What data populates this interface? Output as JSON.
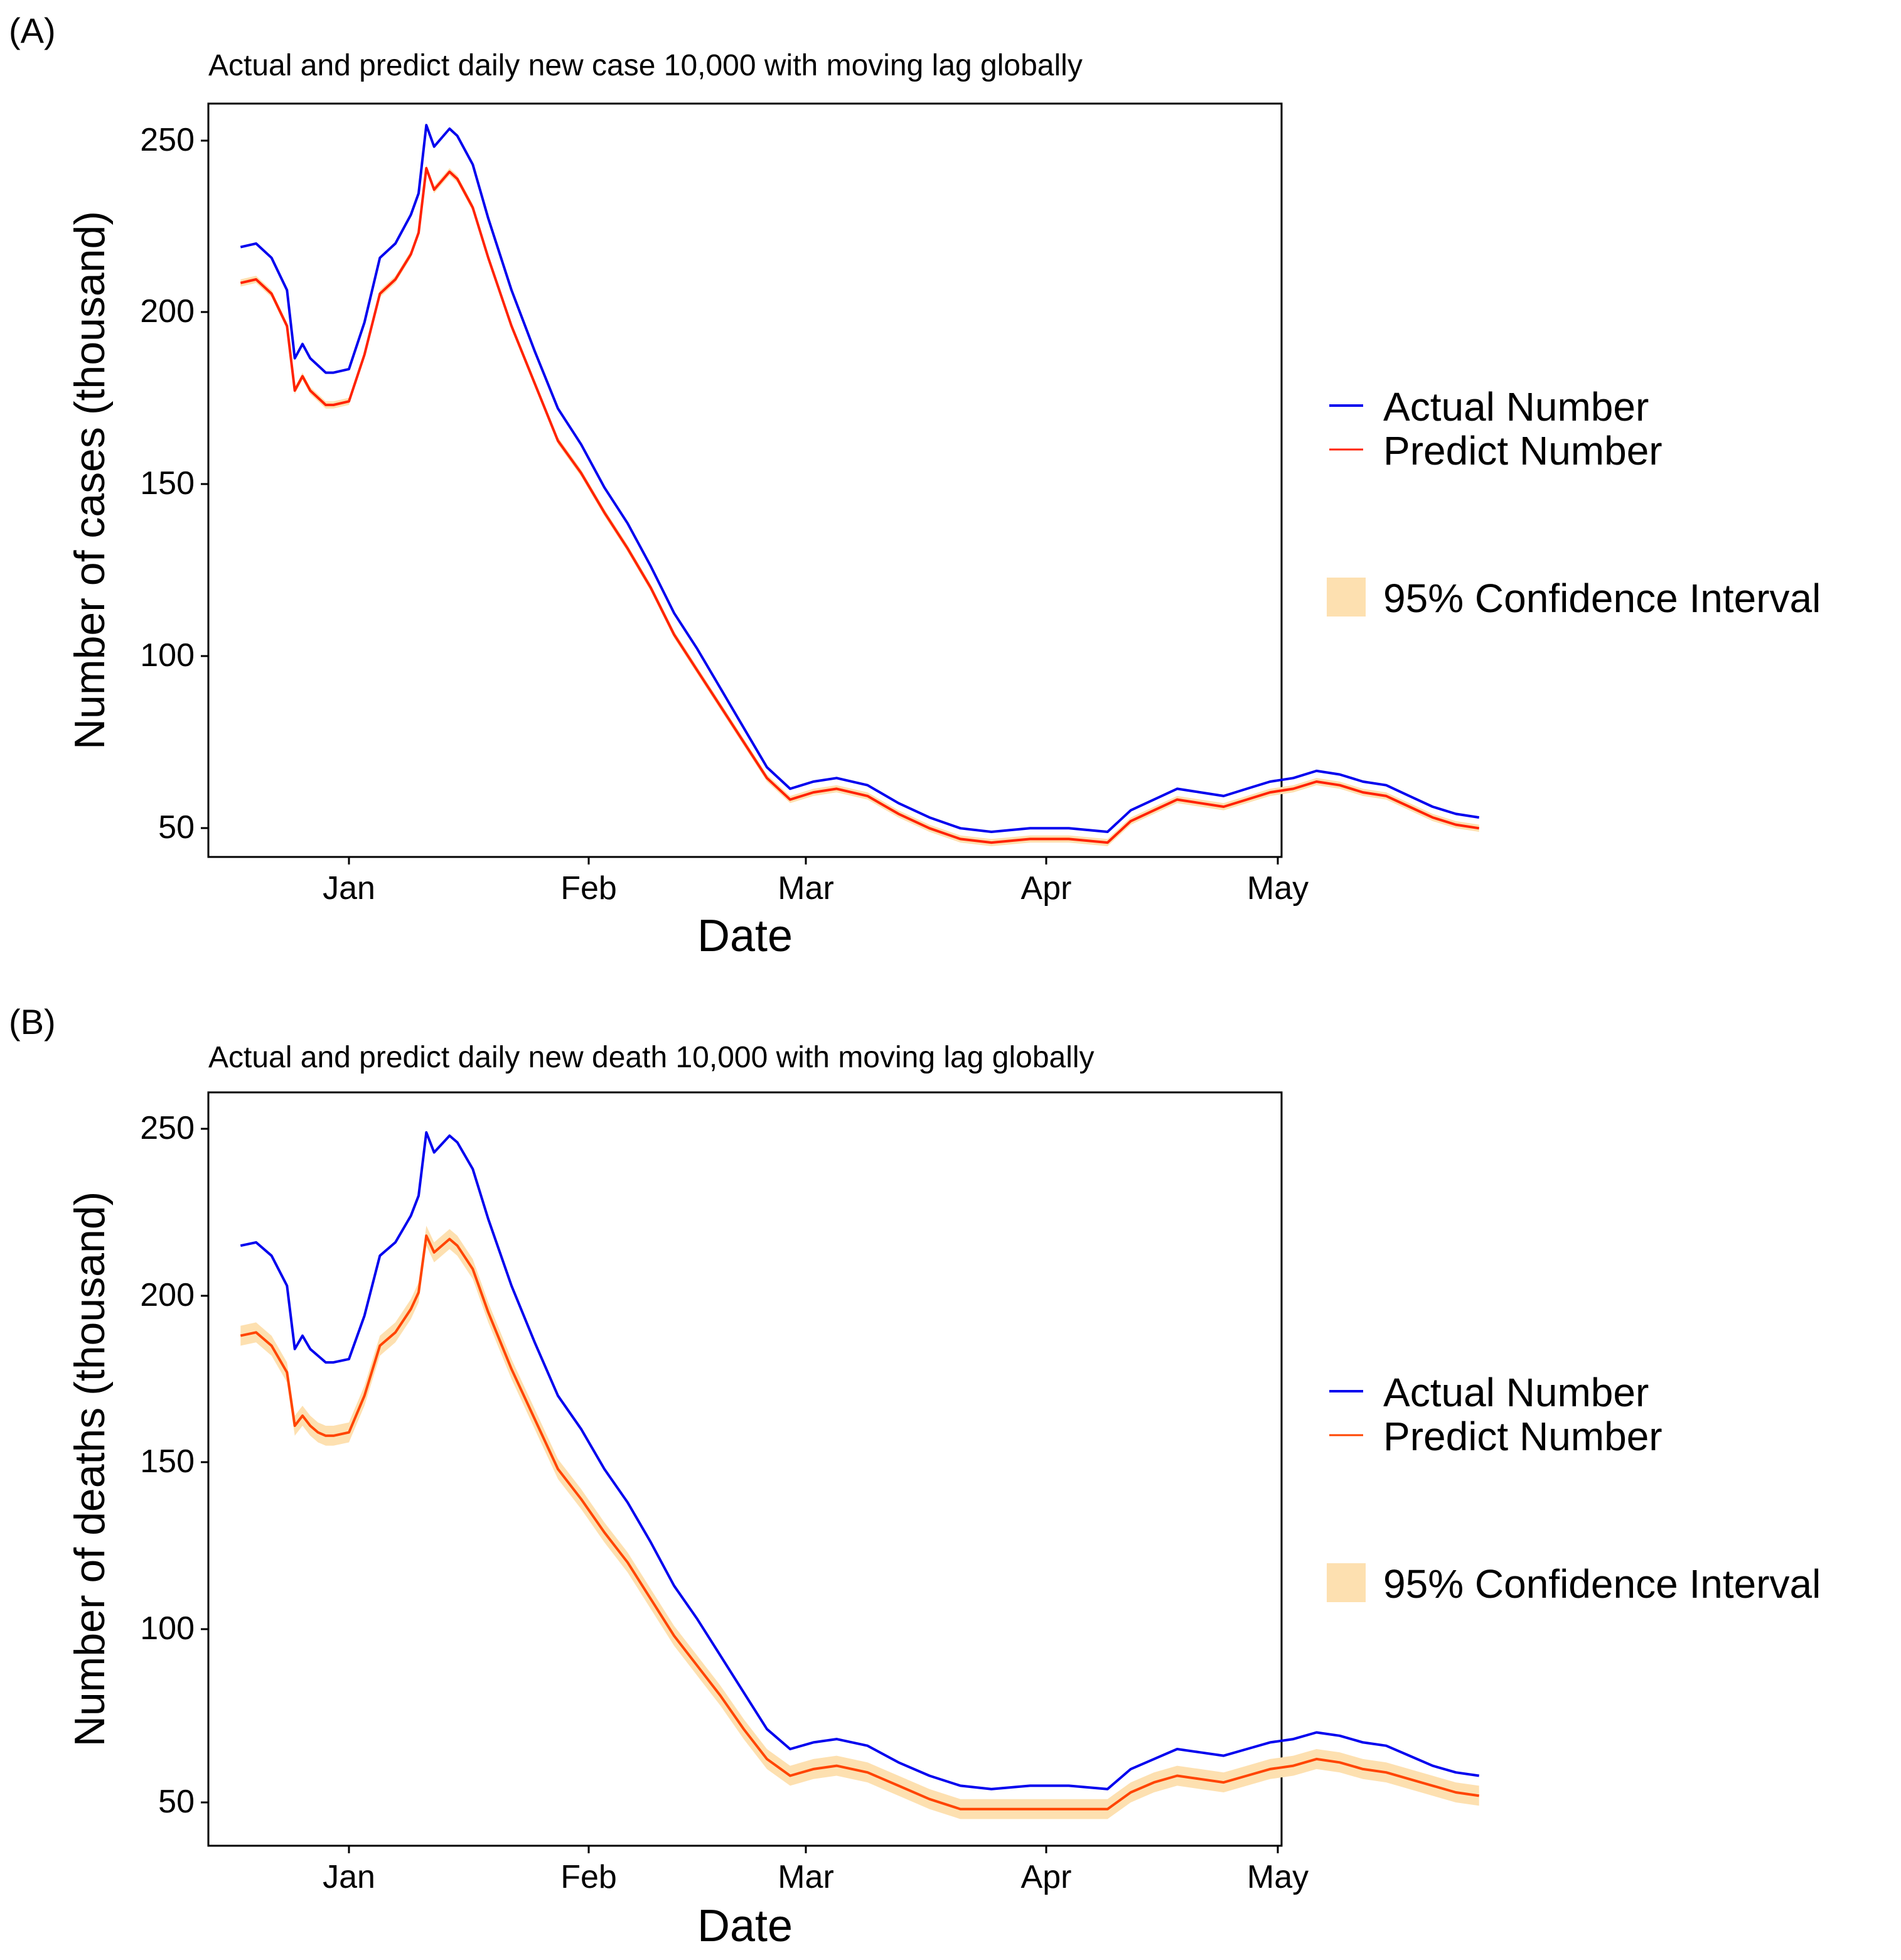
{
  "panels": [
    {
      "label": "(A)",
      "chart_data": {
        "type": "line",
        "title": "Actual and predict daily new case 10,000 with moving lag globally",
        "xlabel": "Date",
        "ylabel": "Number of cases (thousand)",
        "x_ticks": [
          "Jan",
          "Feb",
          "Mar",
          "Apr",
          "May"
        ],
        "y_ticks": [
          50,
          100,
          150,
          200,
          250
        ],
        "ylim": [
          47,
          257
        ],
        "grid": false,
        "legend_position": "right",
        "x": [
          -14,
          -12,
          -10,
          -8,
          -7,
          -6,
          -5,
          -4,
          -3,
          -2,
          0,
          2,
          4,
          6,
          8,
          9,
          10,
          11,
          13,
          14,
          16,
          18,
          21,
          24,
          27,
          30,
          33,
          36,
          39,
          42,
          45,
          48,
          51,
          54,
          57,
          60,
          63,
          67,
          71,
          75,
          79,
          83,
          88,
          93,
          98,
          101,
          104,
          107,
          110,
          113,
          116,
          119,
          122,
          125,
          128,
          131,
          134,
          137,
          140,
          143,
          146
        ],
        "series": [
          {
            "name": "Actual Number",
            "color": "#0000ee",
            "values": [
              217,
              218,
              214,
              205,
              186,
              190,
              186,
              184,
              182,
              182,
              183,
              196,
              214,
              218,
              226,
              232,
              251,
              245,
              250,
              248,
              240,
              225,
              205,
              188,
              172,
              162,
              150,
              140,
              128,
              115,
              105,
              94,
              83,
              72,
              66,
              68,
              69,
              67,
              62,
              58,
              55,
              54,
              55,
              55,
              54,
              60,
              63,
              66,
              65,
              64,
              66,
              68,
              69,
              71,
              70,
              68,
              67,
              64,
              61,
              59,
              58
            ]
          },
          {
            "name": "Predict Number",
            "color": "#ff2200",
            "values": [
              207,
              208,
              204,
              195,
              177,
              181,
              177,
              175,
              173,
              173,
              174,
              187,
              204,
              208,
              215,
              221,
              239,
              233,
              238,
              236,
              228,
              214,
              195,
              179,
              163,
              154,
              143,
              133,
              122,
              109,
              99,
              89,
              79,
              69,
              63,
              65,
              66,
              64,
              59,
              55,
              52,
              51,
              52,
              52,
              51,
              57,
              60,
              63,
              62,
              61,
              63,
              65,
              66,
              68,
              67,
              65,
              64,
              61,
              58,
              56,
              55
            ]
          }
        ],
        "ci": {
          "name": "95% Confidence Interval",
          "color": "#fde0b0",
          "lower": [
            206,
            207,
            203,
            194,
            176,
            180,
            176,
            174,
            172,
            172,
            173,
            186,
            203,
            207,
            214,
            220,
            238,
            232,
            237,
            235,
            227,
            213,
            194,
            178,
            162,
            153,
            142,
            132,
            121,
            108,
            98,
            88,
            78,
            68,
            62,
            64,
            65,
            63,
            58,
            54,
            51,
            50,
            51,
            51,
            50,
            56,
            59,
            62,
            61,
            60,
            62,
            64,
            65,
            67,
            66,
            64,
            63,
            60,
            57,
            55,
            54
          ],
          "upper": [
            208,
            209,
            205,
            196,
            178,
            182,
            178,
            176,
            174,
            174,
            175,
            188,
            205,
            209,
            216,
            222,
            240,
            234,
            239,
            237,
            229,
            215,
            196,
            180,
            164,
            155,
            144,
            134,
            123,
            110,
            100,
            90,
            80,
            70,
            64,
            66,
            67,
            65,
            60,
            56,
            53,
            52,
            53,
            53,
            52,
            58,
            61,
            64,
            63,
            62,
            64,
            66,
            67,
            69,
            68,
            66,
            65,
            62,
            59,
            57,
            56
          ]
        }
      }
    },
    {
      "label": "(B)",
      "chart_data": {
        "type": "line",
        "title": "Actual and predict daily new death 10,000 with moving lag globally",
        "xlabel": "Date",
        "ylabel": "Number of deaths (thousand)",
        "x_ticks": [
          "Jan",
          "Feb",
          "Mar",
          "Apr",
          "May"
        ],
        "y_ticks": [
          50,
          100,
          150,
          200,
          250
        ],
        "ylim": [
          37,
          263
        ],
        "grid": false,
        "legend_position": "right",
        "x": [
          -14,
          -12,
          -10,
          -8,
          -7,
          -6,
          -5,
          -4,
          -3,
          -2,
          0,
          2,
          4,
          6,
          8,
          9,
          10,
          11,
          13,
          14,
          16,
          18,
          21,
          24,
          27,
          30,
          33,
          36,
          39,
          42,
          45,
          48,
          51,
          54,
          57,
          60,
          63,
          67,
          71,
          75,
          79,
          83,
          88,
          93,
          98,
          101,
          104,
          107,
          110,
          113,
          116,
          119,
          122,
          125,
          128,
          131,
          134,
          137,
          140,
          143,
          146
        ],
        "series": [
          {
            "name": "Actual Number",
            "color": "#0000ee",
            "values": [
              217,
              218,
              214,
              205,
              186,
              190,
              186,
              184,
              182,
              182,
              183,
              196,
              214,
              218,
              226,
              232,
              251,
              245,
              250,
              248,
              240,
              225,
              205,
              188,
              172,
              162,
              150,
              140,
              128,
              115,
              105,
              94,
              83,
              72,
              66,
              68,
              69,
              67,
              62,
              58,
              55,
              54,
              55,
              55,
              54,
              60,
              63,
              66,
              65,
              64,
              66,
              68,
              69,
              71,
              70,
              68,
              67,
              64,
              61,
              59,
              58
            ]
          },
          {
            "name": "Predict Number",
            "color": "#ff4400",
            "values": [
              190,
              191,
              187,
              179,
              163,
              166,
              163,
              161,
              160,
              160,
              161,
              172,
              187,
              191,
              198,
              203,
              220,
              215,
              219,
              217,
              210,
              197,
              180,
              165,
              150,
              141,
              131,
              122,
              111,
              100,
              91,
              82,
              72,
              63,
              58,
              60,
              61,
              59,
              55,
              51,
              48,
              48,
              48,
              48,
              48,
              53,
              56,
              58,
              57,
              56,
              58,
              60,
              61,
              63,
              62,
              60,
              59,
              57,
              55,
              53,
              52
            ]
          }
        ],
        "ci": {
          "name": "95% Confidence Interval",
          "color": "#fde0b0",
          "lower": [
            187,
            188,
            184,
            176,
            160,
            163,
            160,
            158,
            157,
            157,
            158,
            169,
            184,
            188,
            195,
            200,
            217,
            212,
            216,
            214,
            207,
            194,
            177,
            162,
            147,
            138,
            128,
            119,
            108,
            97,
            88,
            79,
            69,
            60,
            55,
            57,
            58,
            56,
            52,
            48,
            45,
            45,
            45,
            45,
            45,
            50,
            53,
            55,
            54,
            53,
            55,
            57,
            58,
            60,
            59,
            57,
            56,
            54,
            52,
            50,
            49
          ],
          "upper": [
            193,
            194,
            190,
            182,
            166,
            169,
            166,
            164,
            163,
            163,
            164,
            175,
            190,
            194,
            201,
            206,
            223,
            218,
            222,
            220,
            213,
            200,
            183,
            168,
            153,
            144,
            134,
            125,
            114,
            103,
            94,
            85,
            75,
            66,
            61,
            63,
            64,
            62,
            58,
            54,
            51,
            51,
            51,
            51,
            51,
            56,
            59,
            61,
            60,
            59,
            61,
            63,
            64,
            66,
            65,
            63,
            62,
            60,
            58,
            56,
            55
          ]
        }
      }
    }
  ]
}
